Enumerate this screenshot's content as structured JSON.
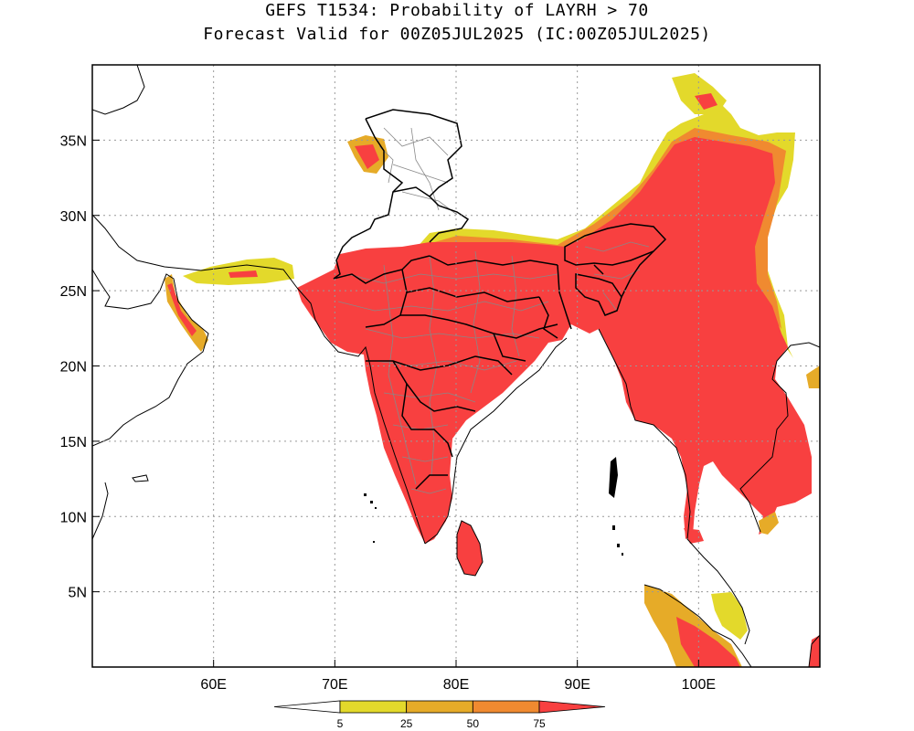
{
  "title": {
    "line1": "GEFS T1534: Probability of LAYRH > 70",
    "line2": "Forecast Valid for 00Z05JUL2025 (IC:00Z05JUL2025)"
  },
  "map": {
    "lon_range": [
      50,
      110
    ],
    "lat_range": [
      0,
      40
    ],
    "lon_ticks": [
      {
        "value": 60,
        "label": "60E"
      },
      {
        "value": 70,
        "label": "70E"
      },
      {
        "value": 80,
        "label": "80E"
      },
      {
        "value": 90,
        "label": "90E"
      },
      {
        "value": 100,
        "label": "100E"
      }
    ],
    "lat_ticks": [
      {
        "value": 35,
        "label": "35N"
      },
      {
        "value": 30,
        "label": "30N"
      },
      {
        "value": 25,
        "label": "25N"
      },
      {
        "value": 20,
        "label": "20N"
      },
      {
        "value": 15,
        "label": "15N"
      },
      {
        "value": 10,
        "label": "10N"
      },
      {
        "value": 5,
        "label": "5N"
      }
    ],
    "gridlines": true
  },
  "colorbar": {
    "colors": [
      "#ffffff",
      "#e3d92b",
      "#e6ab28",
      "#f08a30",
      "#f84040"
    ],
    "labels": [
      "5",
      "25",
      "50",
      "75"
    ]
  }
}
